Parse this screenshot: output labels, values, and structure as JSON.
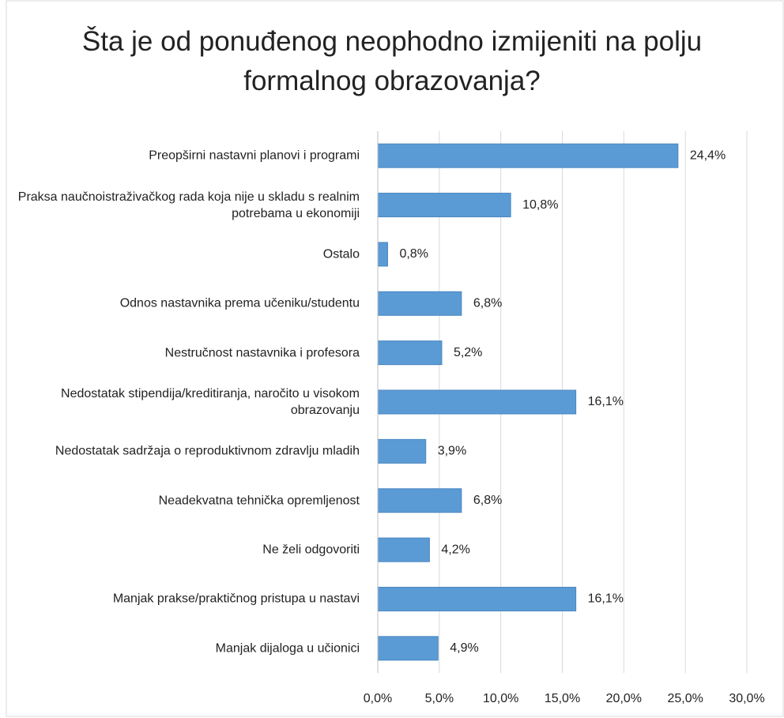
{
  "chart_data": {
    "type": "bar",
    "orientation": "horizontal",
    "title": "Šta je od ponuđenog neophodno izmijeniti na polju formalnog obrazovanja?",
    "categories": [
      "Preopširni nastavni planovi i programi",
      "Praksa naučnoistraživačkog rada koja nije u skladu s realnim potrebama u ekonomiji",
      "Ostalo",
      "Odnos nastavnika prema učeniku/studentu",
      "Nestručnost nastavnika i profesora",
      "Nedostatak stipendija/kreditiranja, naročito u visokom obrazovanju",
      "Nedostatak sadržaja o reproduktivnom zdravlju mladih",
      "Neadekvatna tehnička opremljenost",
      "Ne želi odgovoriti",
      "Manjak prakse/praktičnog pristupa u nastavi",
      "Manjak dijaloga u učionici"
    ],
    "values": [
      24.4,
      10.8,
      0.8,
      6.8,
      5.2,
      16.1,
      3.9,
      6.8,
      4.2,
      16.1,
      4.9
    ],
    "value_labels": [
      "24,4%",
      "10,8%",
      "0,8%",
      "6,8%",
      "5,2%",
      "16,1%",
      "3,9%",
      "6,8%",
      "4,2%",
      "16,1%",
      "4,9%"
    ],
    "color": "#5b9bd5",
    "xlim": [
      0,
      30
    ],
    "xticks": [
      {
        "value": 0,
        "label": "0,0%"
      },
      {
        "value": 5,
        "label": "5,0%"
      },
      {
        "value": 10,
        "label": "10,0%"
      },
      {
        "value": 15,
        "label": "15,0%"
      },
      {
        "value": 20,
        "label": "20,0%"
      },
      {
        "value": 25,
        "label": "25,0%"
      },
      {
        "value": 30,
        "label": "30,0%"
      }
    ],
    "grid": true
  }
}
